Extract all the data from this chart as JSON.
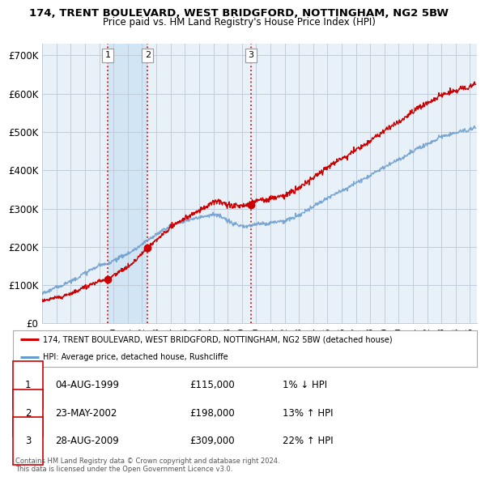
{
  "title": "174, TRENT BOULEVARD, WEST BRIDGFORD, NOTTINGHAM, NG2 5BW",
  "subtitle": "Price paid vs. HM Land Registry's House Price Index (HPI)",
  "ylabel_ticks": [
    "£0",
    "£100K",
    "£200K",
    "£300K",
    "£400K",
    "£500K",
    "£600K",
    "£700K"
  ],
  "ytick_values": [
    0,
    100000,
    200000,
    300000,
    400000,
    500000,
    600000,
    700000
  ],
  "ylim": [
    0,
    730000
  ],
  "xlim_start": 1995.0,
  "xlim_end": 2025.5,
  "purchases": [
    {
      "date_num": 1999.59,
      "price": 115000,
      "label": "1"
    },
    {
      "date_num": 2002.39,
      "price": 198000,
      "label": "2"
    },
    {
      "date_num": 2009.65,
      "price": 309000,
      "label": "3"
    }
  ],
  "purchase_vline_color": "#cc0000",
  "hpi_line_color": "#6699cc",
  "price_line_color": "#cc0000",
  "background_color": "#ffffff",
  "chart_bg_color": "#e8f0f8",
  "grid_color": "#c0ccd8",
  "shade_color": "#d0e4f4",
  "legend_address_label": "174, TRENT BOULEVARD, WEST BRIDGFORD, NOTTINGHAM, NG2 5BW (detached house)",
  "legend_hpi_label": "HPI: Average price, detached house, Rushcliffe",
  "table_rows": [
    {
      "num": "1",
      "date": "04-AUG-1999",
      "price": "£115,000",
      "pct": "1% ↓ HPI"
    },
    {
      "num": "2",
      "date": "23-MAY-2002",
      "price": "£198,000",
      "pct": "13% ↑ HPI"
    },
    {
      "num": "3",
      "date": "28-AUG-2009",
      "price": "£309,000",
      "pct": "22% ↑ HPI"
    }
  ],
  "footer": "Contains HM Land Registry data © Crown copyright and database right 2024.\nThis data is licensed under the Open Government Licence v3.0.",
  "xtick_years": [
    1995,
    1996,
    1997,
    1998,
    1999,
    2000,
    2001,
    2002,
    2003,
    2004,
    2005,
    2006,
    2007,
    2008,
    2009,
    2010,
    2011,
    2012,
    2013,
    2014,
    2015,
    2016,
    2017,
    2018,
    2019,
    2020,
    2021,
    2022,
    2023,
    2024,
    2025
  ]
}
